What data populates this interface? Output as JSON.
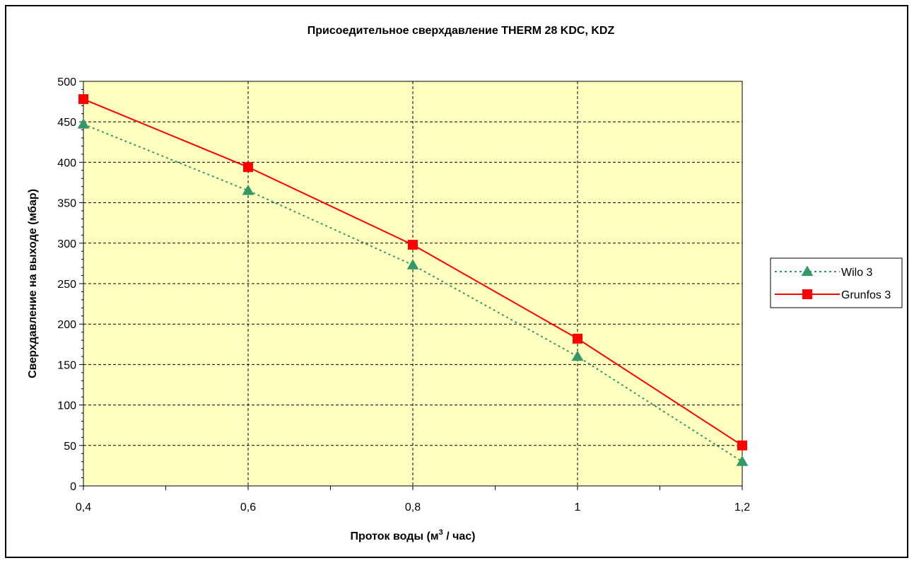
{
  "chart_data": {
    "type": "line",
    "title": "Присоедительное сверхдавление THERM 28 KDC, KDZ",
    "xlabel": "Проток воды (м³ / час)",
    "xlabel_main": "Проток воды (м",
    "xlabel_sup": "3",
    "xlabel_tail": " / час)",
    "ylabel": "Сверхдавление на выходе (мбар)",
    "x": [
      0.4,
      0.6,
      0.8,
      1.0,
      1.2
    ],
    "xlim": [
      0.4,
      1.2
    ],
    "ylim": [
      0,
      500
    ],
    "x_ticks": [
      0.4,
      0.6,
      0.8,
      1.0,
      1.2
    ],
    "x_tick_labels": [
      "0,4",
      "0,6",
      "0,8",
      "1",
      "1,2"
    ],
    "y_ticks": [
      0,
      50,
      100,
      150,
      200,
      250,
      300,
      350,
      400,
      450,
      500
    ],
    "y_tick_labels": [
      "0",
      "50",
      "100",
      "150",
      "200",
      "250",
      "300",
      "350",
      "400",
      "450",
      "500"
    ],
    "grid": true,
    "plot_background": "#ffffc0",
    "legend_position": "right",
    "series": [
      {
        "name": "Wilo 3",
        "values": [
          447,
          365,
          273,
          160,
          30
        ],
        "color": "#339966",
        "marker": "triangle",
        "line_style": "dotted"
      },
      {
        "name": "Grunfos 3",
        "values": [
          478,
          394,
          298,
          182,
          50
        ],
        "color": "#ff0000",
        "marker": "square",
        "line_style": "solid"
      }
    ]
  }
}
